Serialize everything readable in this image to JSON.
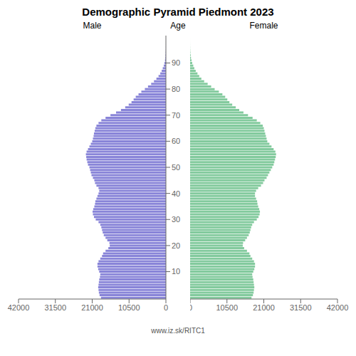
{
  "chart_data": {
    "type": "bar",
    "orientation": "horizontal",
    "title": "Demographic Pyramid Piedmont 2023",
    "ylabel": "Age",
    "source": "www.iz.sk/RITC1",
    "categories": [
      null,
      null,
      null,
      null,
      null,
      null,
      null,
      null,
      null,
      null,
      10,
      null,
      null,
      null,
      null,
      null,
      null,
      null,
      null,
      null,
      20,
      null,
      null,
      null,
      null,
      null,
      null,
      null,
      null,
      null,
      30,
      null,
      null,
      null,
      null,
      null,
      null,
      null,
      null,
      null,
      40,
      null,
      null,
      null,
      null,
      null,
      null,
      null,
      null,
      null,
      50,
      null,
      null,
      null,
      null,
      null,
      null,
      null,
      null,
      null,
      60,
      null,
      null,
      null,
      null,
      null,
      null,
      null,
      null,
      null,
      70,
      null,
      null,
      null,
      null,
      null,
      null,
      null,
      null,
      null,
      80,
      null,
      null,
      null,
      null,
      null,
      null,
      null,
      null,
      null,
      90,
      null,
      null,
      null,
      null,
      null,
      null,
      null,
      null,
      null,
      null
    ],
    "series": [
      {
        "name": "Male",
        "color": "#8884d8",
        "values": [
          18500,
          18900,
          19100,
          19200,
          19300,
          19200,
          19100,
          19000,
          18800,
          18700,
          19000,
          19300,
          19500,
          19500,
          19200,
          18700,
          18200,
          17900,
          17200,
          16400,
          16000,
          16100,
          16700,
          17200,
          17700,
          18000,
          18200,
          18400,
          18700,
          19200,
          20000,
          20500,
          20800,
          20900,
          20700,
          20400,
          20200,
          20100,
          19800,
          19500,
          19200,
          19000,
          19200,
          19800,
          20200,
          20400,
          20800,
          21200,
          21400,
          21600,
          21800,
          22200,
          22400,
          22600,
          22700,
          22800,
          22600,
          22200,
          21800,
          21400,
          21000,
          20800,
          20600,
          20500,
          20300,
          20100,
          19800,
          19200,
          18400,
          17200,
          15800,
          14200,
          12800,
          11600,
          10600,
          9800,
          9200,
          8600,
          7800,
          7000,
          6000,
          5100,
          4200,
          3400,
          2700,
          2100,
          1600,
          1200,
          900,
          600,
          400,
          250,
          150,
          100,
          60,
          30,
          15,
          8,
          4,
          2,
          1
        ]
      },
      {
        "name": "Female",
        "color": "#82ca9d",
        "values": [
          17500,
          17900,
          18100,
          18200,
          18300,
          18200,
          18100,
          18000,
          17800,
          17700,
          18000,
          18300,
          18500,
          18500,
          18200,
          17700,
          17200,
          16900,
          16200,
          15400,
          15000,
          15100,
          15700,
          16200,
          16700,
          17000,
          17200,
          17400,
          17700,
          18200,
          19000,
          19500,
          19800,
          19900,
          19700,
          19400,
          19200,
          19100,
          18800,
          18500,
          18500,
          18800,
          19400,
          20200,
          20800,
          21200,
          21800,
          22200,
          22600,
          23000,
          23400,
          23800,
          24000,
          24200,
          24400,
          24500,
          24300,
          23800,
          23200,
          22600,
          22000,
          21800,
          21600,
          21400,
          21200,
          21000,
          20700,
          20000,
          19000,
          17800,
          16500,
          15200,
          14000,
          13000,
          12000,
          11200,
          10600,
          10000,
          9200,
          8200,
          7000,
          6000,
          5000,
          4000,
          3200,
          2600,
          2100,
          1600,
          1200,
          900,
          600,
          400,
          250,
          150,
          90,
          50,
          25,
          12,
          6,
          3,
          1
        ]
      }
    ],
    "xlim": [
      0,
      42000
    ],
    "xticks": [
      0,
      10500,
      21000,
      31500,
      42000
    ],
    "grid": false
  }
}
